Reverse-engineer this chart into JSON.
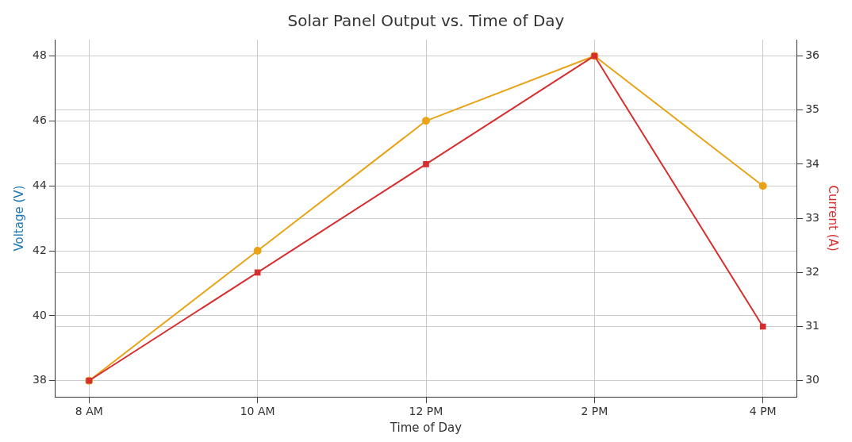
{
  "chart_data": {
    "type": "line",
    "title": "Solar Panel Output vs. Time of Day",
    "xlabel": "Time of Day",
    "ylabel": "Voltage (V)",
    "y2label": "Current (A)",
    "categories": [
      "8 AM",
      "10 AM",
      "12 PM",
      "2 PM",
      "4 PM"
    ],
    "series": [
      {
        "color": "#e8a317",
        "values": [
          38,
          42,
          46,
          48,
          44
        ],
        "marker": "circle"
      },
      {
        "color": "#d62f2f",
        "values": [
          30,
          32,
          34,
          36,
          31
        ],
        "marker": "square",
        "axis": "y2"
      }
    ],
    "ylim": [
      37.5,
      48.5
    ],
    "yticks": [
      38,
      40,
      42,
      44,
      46,
      48
    ],
    "y2lim": [
      29.7,
      36.3
    ],
    "y2ticks": [
      30,
      31,
      32,
      33,
      34,
      35,
      36
    ],
    "grid": true
  }
}
